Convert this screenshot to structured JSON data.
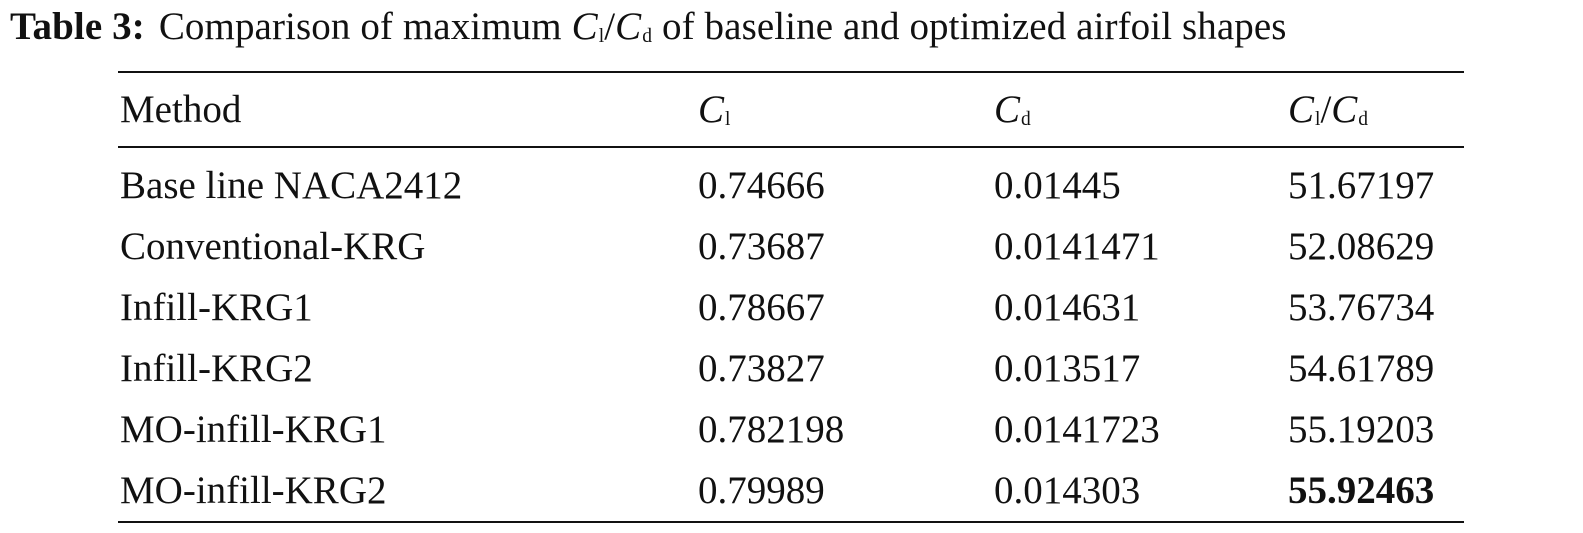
{
  "caption": {
    "label": "Table 3:",
    "text_before": "Comparison of maximum",
    "sym1_main": "C",
    "sym1_sub": "l",
    "slash": "/",
    "sym2_main": "C",
    "sym2_sub": "d",
    "text_after": "of baseline and optimized airfoil shapes"
  },
  "table": {
    "headers": {
      "method": "Method",
      "cl_main": "C",
      "cl_sub": "l",
      "cd_main": "C",
      "cd_sub": "d",
      "ratio_num_main": "C",
      "ratio_num_sub": "l",
      "ratio_slash": "/",
      "ratio_den_main": "C",
      "ratio_den_sub": "d"
    },
    "rows": [
      {
        "method": "Base line NACA2412",
        "cl": "0.74666",
        "cd": "0.01445",
        "ratio": "51.67197"
      },
      {
        "method": "Conventional-KRG",
        "cl": "0.73687",
        "cd": "0.0141471",
        "ratio": "52.08629"
      },
      {
        "method": "Infill-KRG1",
        "cl": "0.78667",
        "cd": "0.014631",
        "ratio": "53.76734"
      },
      {
        "method": "Infill-KRG2",
        "cl": "0.73827",
        "cd": "0.013517",
        "ratio": "54.61789"
      },
      {
        "method": "MO-infill-KRG1",
        "cl": "0.782198",
        "cd": "0.0141723",
        "ratio": "55.19203"
      },
      {
        "method": "MO-infill-KRG2",
        "cl": "0.79989",
        "cd": "0.014303",
        "ratio": "55.92463"
      }
    ]
  }
}
